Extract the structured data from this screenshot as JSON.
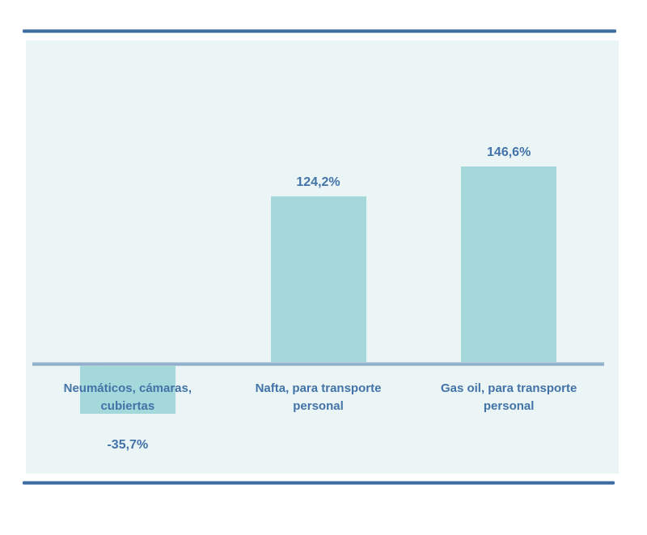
{
  "chart_data": {
    "type": "bar",
    "categories": [
      "Neumáticos, cámaras, cubiertas",
      "Nafta, para transporte personal",
      "Gas oil, para transporte personal"
    ],
    "category_lines": [
      [
        "Neumáticos, cámaras,",
        "cubiertas"
      ],
      [
        "Nafta, para transporte",
        "personal"
      ],
      [
        "Gas oil, para transporte",
        "personal"
      ]
    ],
    "values": [
      -35.7,
      124.2,
      146.6
    ],
    "value_labels": [
      "-35,7%",
      "124,2%",
      "146,6%"
    ],
    "title": "",
    "xlabel": "",
    "ylabel": "",
    "ylim": [
      -50,
      160
    ],
    "grid": false,
    "legend": false,
    "colors": {
      "bar_fill": "#a5d8db",
      "panel_background": "#ecf5f6",
      "axis_line": "#8fafca",
      "frame_line": "#38689e",
      "label_text": "#4273a8"
    }
  }
}
